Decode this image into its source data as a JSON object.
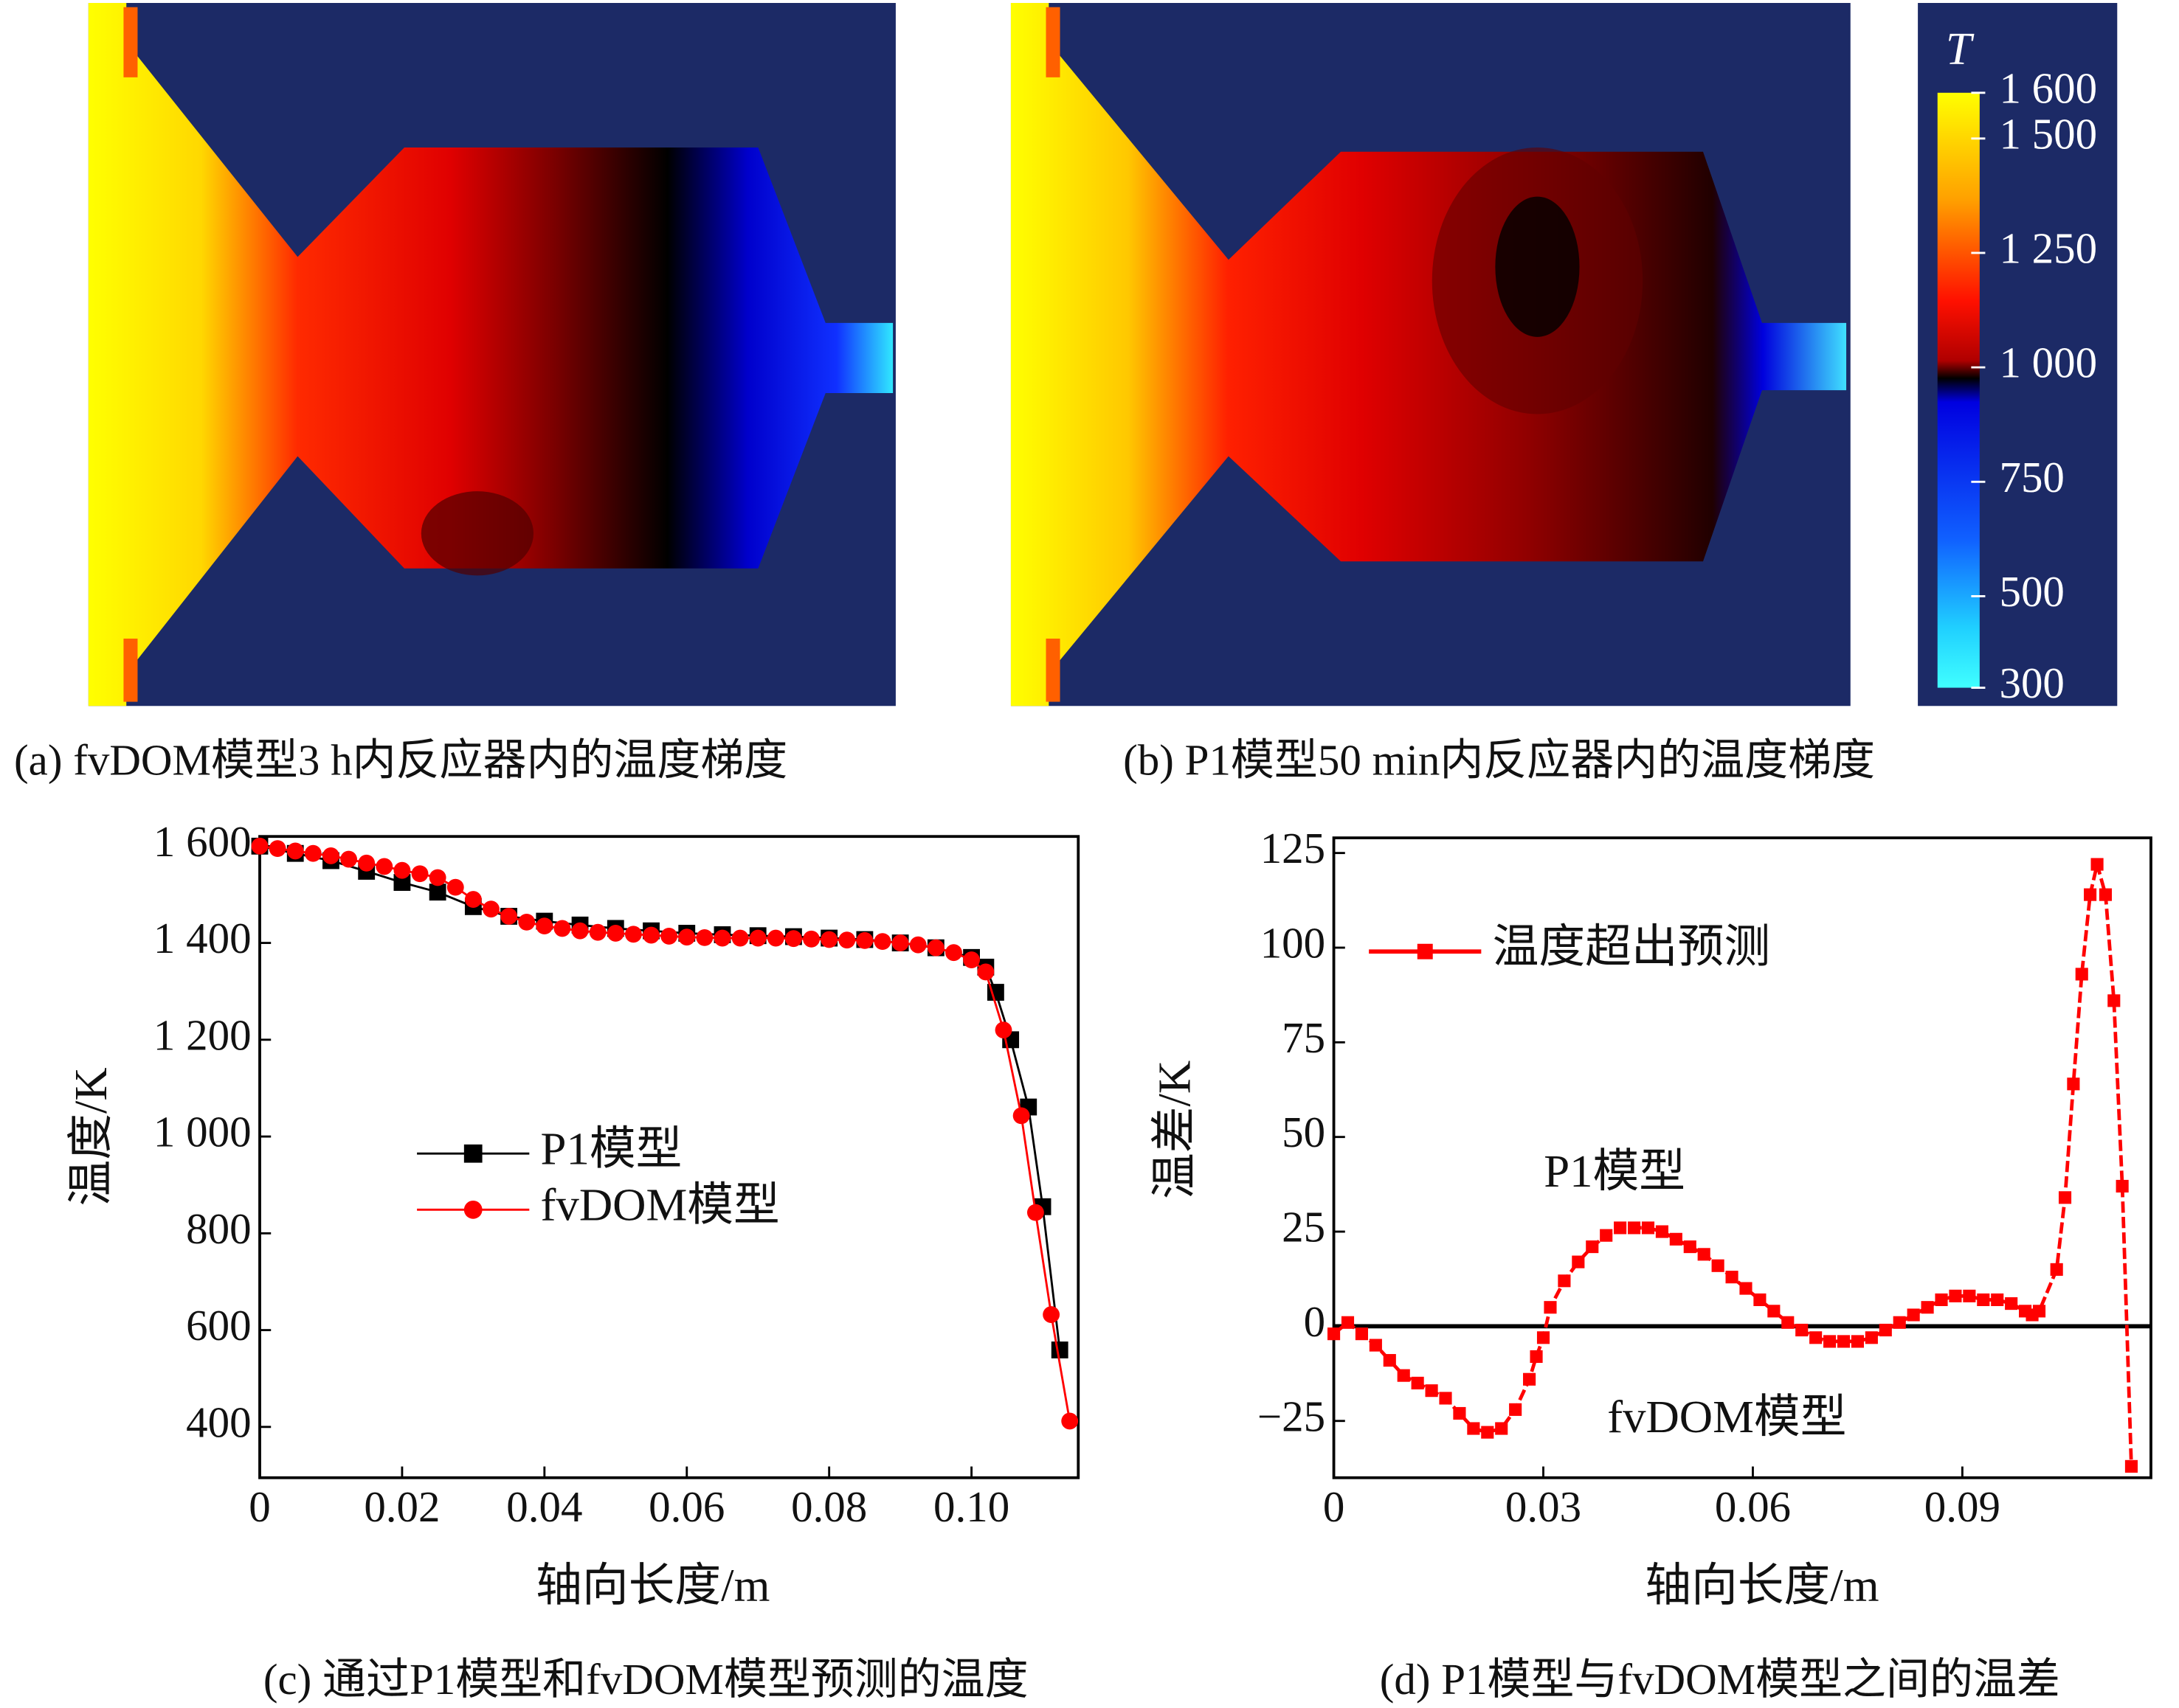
{
  "chart_data": [
    {
      "type": "contour",
      "captions": [
        "(a) fvDOM模型3 h内反应器内的温度梯度",
        "(b) P1模型50 min内反应器内的温度梯度"
      ],
      "colorbar_label": "T",
      "clim": [
        300,
        1600
      ],
      "cticks": [
        {
          "value": 1600,
          "label": "1 600"
        },
        {
          "value": 1500,
          "label": "1 500"
        },
        {
          "value": 1250,
          "label": "1 250"
        },
        {
          "value": 1000,
          "label": "1 000"
        },
        750,
        500,
        300
      ]
    },
    {
      "type": "line",
      "xlabel": "轴向长度/m",
      "ylabel": "温度/K",
      "caption": "(c) 通过P1模型和fvDOM模型预测的温度",
      "xlim": [
        0,
        0.115
      ],
      "ylim": [
        295,
        1620
      ],
      "xticks": [
        0,
        0.02,
        0.04,
        0.06,
        0.08,
        {
          "value": 0.1,
          "label": "0.10"
        }
      ],
      "yticks": [
        {
          "value": 1600,
          "label": "1 600"
        },
        {
          "value": 1400,
          "label": "1 400"
        },
        {
          "value": 1200,
          "label": "1 200"
        },
        {
          "value": 1000,
          "label": "1 000"
        },
        800,
        600,
        400
      ],
      "legend": "center-left",
      "series": [
        {
          "name": "P1模型",
          "color": "#000000",
          "marker": "square",
          "x": [
            0,
            0.005,
            0.01,
            0.015,
            0.02,
            0.025,
            0.03,
            0.035,
            0.04,
            0.045,
            0.05,
            0.055,
            0.06,
            0.065,
            0.07,
            0.075,
            0.08,
            0.085,
            0.09,
            0.095,
            0.1,
            0.102,
            0.1034,
            0.1055,
            0.108,
            0.11,
            0.1124
          ],
          "values": [
            1600,
            1585,
            1570,
            1548,
            1525,
            1505,
            1475,
            1455,
            1445,
            1437,
            1430,
            1425,
            1420,
            1417,
            1415,
            1413,
            1410,
            1407,
            1400,
            1390,
            1370,
            1350,
            1298,
            1200,
            1061,
            855,
            559
          ]
        },
        {
          "name": "fvDOM模型",
          "color": "#ff0000",
          "marker": "circle",
          "x": [
            0,
            0.0025,
            0.005,
            0.0075,
            0.01,
            0.0125,
            0.015,
            0.0175,
            0.02,
            0.0225,
            0.025,
            0.0275,
            0.03,
            0.0325,
            0.035,
            0.0375,
            0.04,
            0.0425,
            0.045,
            0.0475,
            0.05,
            0.0525,
            0.055,
            0.0575,
            0.06,
            0.0625,
            0.065,
            0.0675,
            0.07,
            0.0725,
            0.075,
            0.0775,
            0.08,
            0.0825,
            0.085,
            0.0875,
            0.09,
            0.0925,
            0.095,
            0.0975,
            0.1,
            0.102,
            0.1045,
            0.107,
            0.109,
            0.1112,
            0.1138
          ],
          "values": [
            1600,
            1595,
            1590,
            1585,
            1580,
            1573,
            1565,
            1558,
            1550,
            1543,
            1535,
            1515,
            1490,
            1470,
            1455,
            1443,
            1435,
            1430,
            1425,
            1422,
            1420,
            1418,
            1416,
            1414,
            1412,
            1411,
            1410,
            1410,
            1410,
            1410,
            1409,
            1408,
            1407,
            1406,
            1405,
            1403,
            1400,
            1396,
            1390,
            1380,
            1365,
            1340,
            1220,
            1043,
            843,
            632,
            412
          ]
        }
      ]
    },
    {
      "type": "line",
      "xlabel": "轴向长度/m",
      "ylabel": "温差/K",
      "caption": "(d) P1模型与fvDOM模型之间的温差",
      "xlim": [
        0,
        0.117
      ],
      "ylim": [
        -40,
        129
      ],
      "xticks": [
        0,
        0.03,
        0.06,
        0.09
      ],
      "yticks": [
        125,
        100,
        75,
        50,
        25,
        0,
        {
          "value": -25,
          "label": "−25"
        }
      ],
      "zero_line": true,
      "legend": "upper-left",
      "annotations": [
        "P1模型",
        "fvDOM模型"
      ],
      "series": [
        {
          "name": "温度超出预测",
          "color": "#ff0000",
          "marker": "square",
          "x": [
            0,
            0.002,
            0.004,
            0.006,
            0.008,
            0.01,
            0.012,
            0.014,
            0.016,
            0.018,
            0.02,
            0.022,
            0.024,
            0.026,
            0.028,
            0.029,
            0.03,
            0.031,
            0.033,
            0.035,
            0.037,
            0.039,
            0.041,
            0.043,
            0.045,
            0.047,
            0.049,
            0.051,
            0.053,
            0.055,
            0.057,
            0.059,
            0.061,
            0.063,
            0.065,
            0.067,
            0.069,
            0.071,
            0.073,
            0.075,
            0.077,
            0.079,
            0.081,
            0.083,
            0.085,
            0.087,
            0.089,
            0.091,
            0.093,
            0.095,
            0.097,
            0.099,
            0.1,
            0.101,
            0.1035,
            0.1047,
            0.1059,
            0.1071,
            0.1083,
            0.1093,
            0.1105,
            0.1117,
            0.1129,
            0.1142
          ],
          "values": [
            -2,
            1,
            -2,
            -5,
            -9,
            -13,
            -15,
            -17,
            -19,
            -23,
            -27,
            -28,
            -27,
            -22,
            -14,
            -8,
            -3,
            5,
            12,
            17,
            21,
            24,
            26,
            26,
            26,
            25,
            23,
            21,
            19,
            16,
            13,
            10,
            7,
            4,
            1,
            -1,
            -3,
            -4,
            -4,
            -4,
            -3,
            -1,
            1,
            3,
            5,
            7,
            8,
            8,
            7,
            7,
            6,
            4,
            3,
            4,
            15,
            34,
            64,
            93,
            114,
            122,
            114,
            86,
            37,
            -37
          ]
        }
      ]
    }
  ]
}
